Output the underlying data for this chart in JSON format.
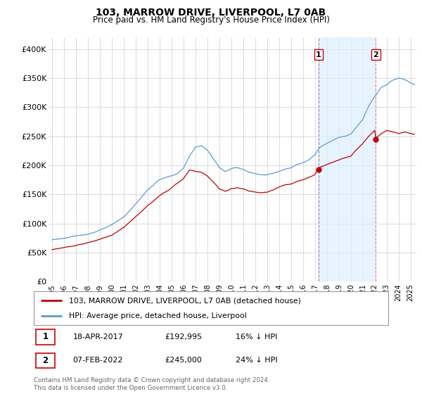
{
  "title": "103, MARROW DRIVE, LIVERPOOL, L7 0AB",
  "subtitle": "Price paid vs. HM Land Registry's House Price Index (HPI)",
  "legend_line1": "103, MARROW DRIVE, LIVERPOOL, L7 0AB (detached house)",
  "legend_line2": "HPI: Average price, detached house, Liverpool",
  "footnote": "Contains HM Land Registry data © Crown copyright and database right 2024.\nThis data is licensed under the Open Government Licence v3.0.",
  "transaction1_label": "1",
  "transaction1_date": "18-APR-2017",
  "transaction1_price": "£192,995",
  "transaction1_hpi": "16% ↓ HPI",
  "transaction1_year": 2017.29,
  "transaction1_value": 192995,
  "transaction2_label": "2",
  "transaction2_date": "07-FEB-2022",
  "transaction2_price": "£245,000",
  "transaction2_hpi": "24% ↓ HPI",
  "transaction2_year": 2022.1,
  "transaction2_value": 245000,
  "hpi_color": "#5b9bd5",
  "price_color": "#c00000",
  "vline1_color": "#aaaacc",
  "vline2_color": "#ffaaaa",
  "shade_color": "#ddeeff",
  "marker_color": "#c00000",
  "background_color": "#ffffff",
  "grid_color": "#cccccc",
  "ylim": [
    0,
    420000
  ],
  "yticks": [
    0,
    50000,
    100000,
    150000,
    200000,
    250000,
    300000,
    350000,
    400000
  ],
  "xlim_left": 1994.7,
  "xlim_right": 2025.5,
  "xtick_years": [
    1995,
    1996,
    1997,
    1998,
    1999,
    2000,
    2001,
    2002,
    2003,
    2004,
    2005,
    2006,
    2007,
    2008,
    2009,
    2010,
    2011,
    2012,
    2013,
    2014,
    2015,
    2016,
    2017,
    2018,
    2019,
    2020,
    2021,
    2022,
    2023,
    2024,
    2025
  ]
}
